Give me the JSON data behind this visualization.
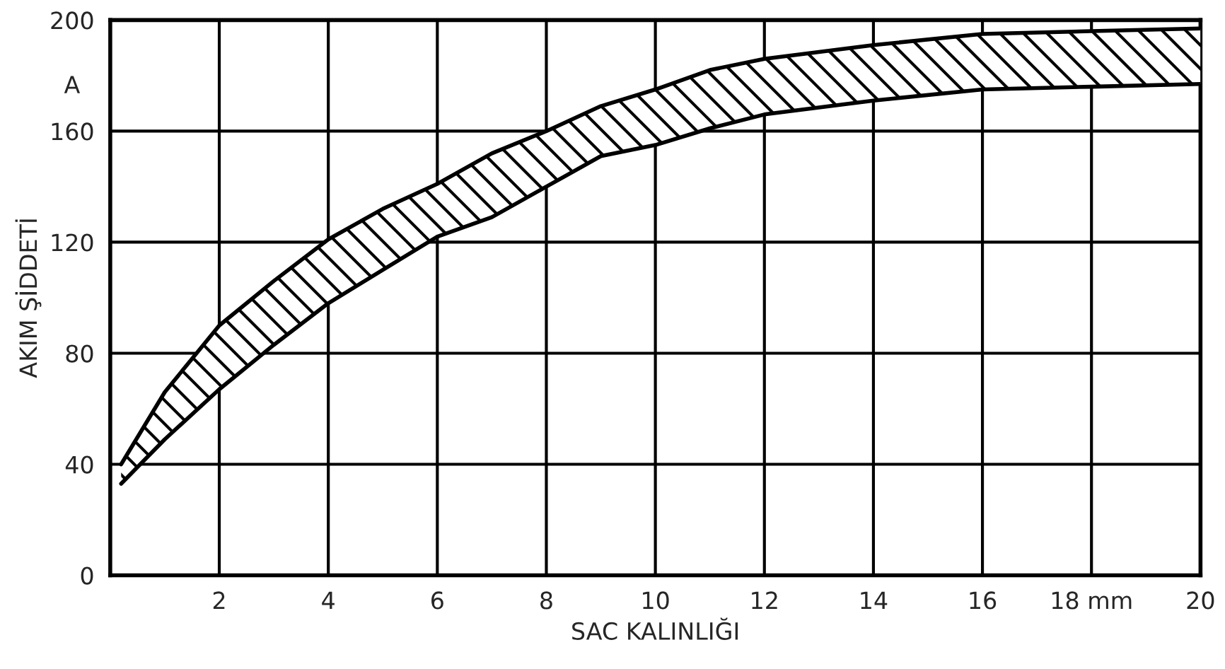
{
  "chart_data": {
    "type": "line",
    "xlabel": "SAC KALINLIĞI",
    "ylabel": "AKIM ŞİDDETİ",
    "annotations": [
      "A"
    ],
    "series": [
      {
        "color": "#000000",
        "values": [
          40,
          66,
          90,
          106,
          121,
          132,
          141,
          152,
          160,
          169,
          175,
          182,
          186,
          191,
          195,
          196,
          197
        ],
        "x": [
          0.2,
          1,
          2,
          3,
          4,
          5,
          6,
          7,
          8,
          9,
          10,
          11,
          12,
          14,
          16,
          18,
          20
        ],
        "upper": [
          40,
          66,
          90,
          106,
          121,
          132,
          141,
          152,
          160,
          169,
          175,
          182,
          186,
          191,
          195,
          196,
          197
        ],
        "lower": [
          33,
          49,
          67,
          83,
          98,
          110,
          122,
          129,
          140,
          151,
          155,
          161,
          166,
          171,
          175,
          176,
          177
        ]
      },
      {
        "type": "line",
        "color": "#000000",
        "x": [
          0.2,
          1,
          2,
          3,
          4,
          5,
          6,
          7,
          8,
          9,
          10,
          11,
          12,
          14,
          16,
          18,
          20
        ],
        "values": [
          33,
          49,
          67,
          83,
          98,
          110,
          122,
          129,
          140,
          151,
          155,
          161,
          166,
          171,
          175,
          176,
          177
        ]
      }
    ],
    "xlim": [
      0,
      20
    ],
    "ylim": [
      0,
      200
    ],
    "xticks": [
      2,
      4,
      6,
      8,
      10,
      12,
      14,
      16,
      {
        "value": 18,
        "label": "18 mm"
      },
      20
    ],
    "yticks": [
      0,
      40,
      80,
      120,
      160,
      200
    ],
    "grid": true
  }
}
